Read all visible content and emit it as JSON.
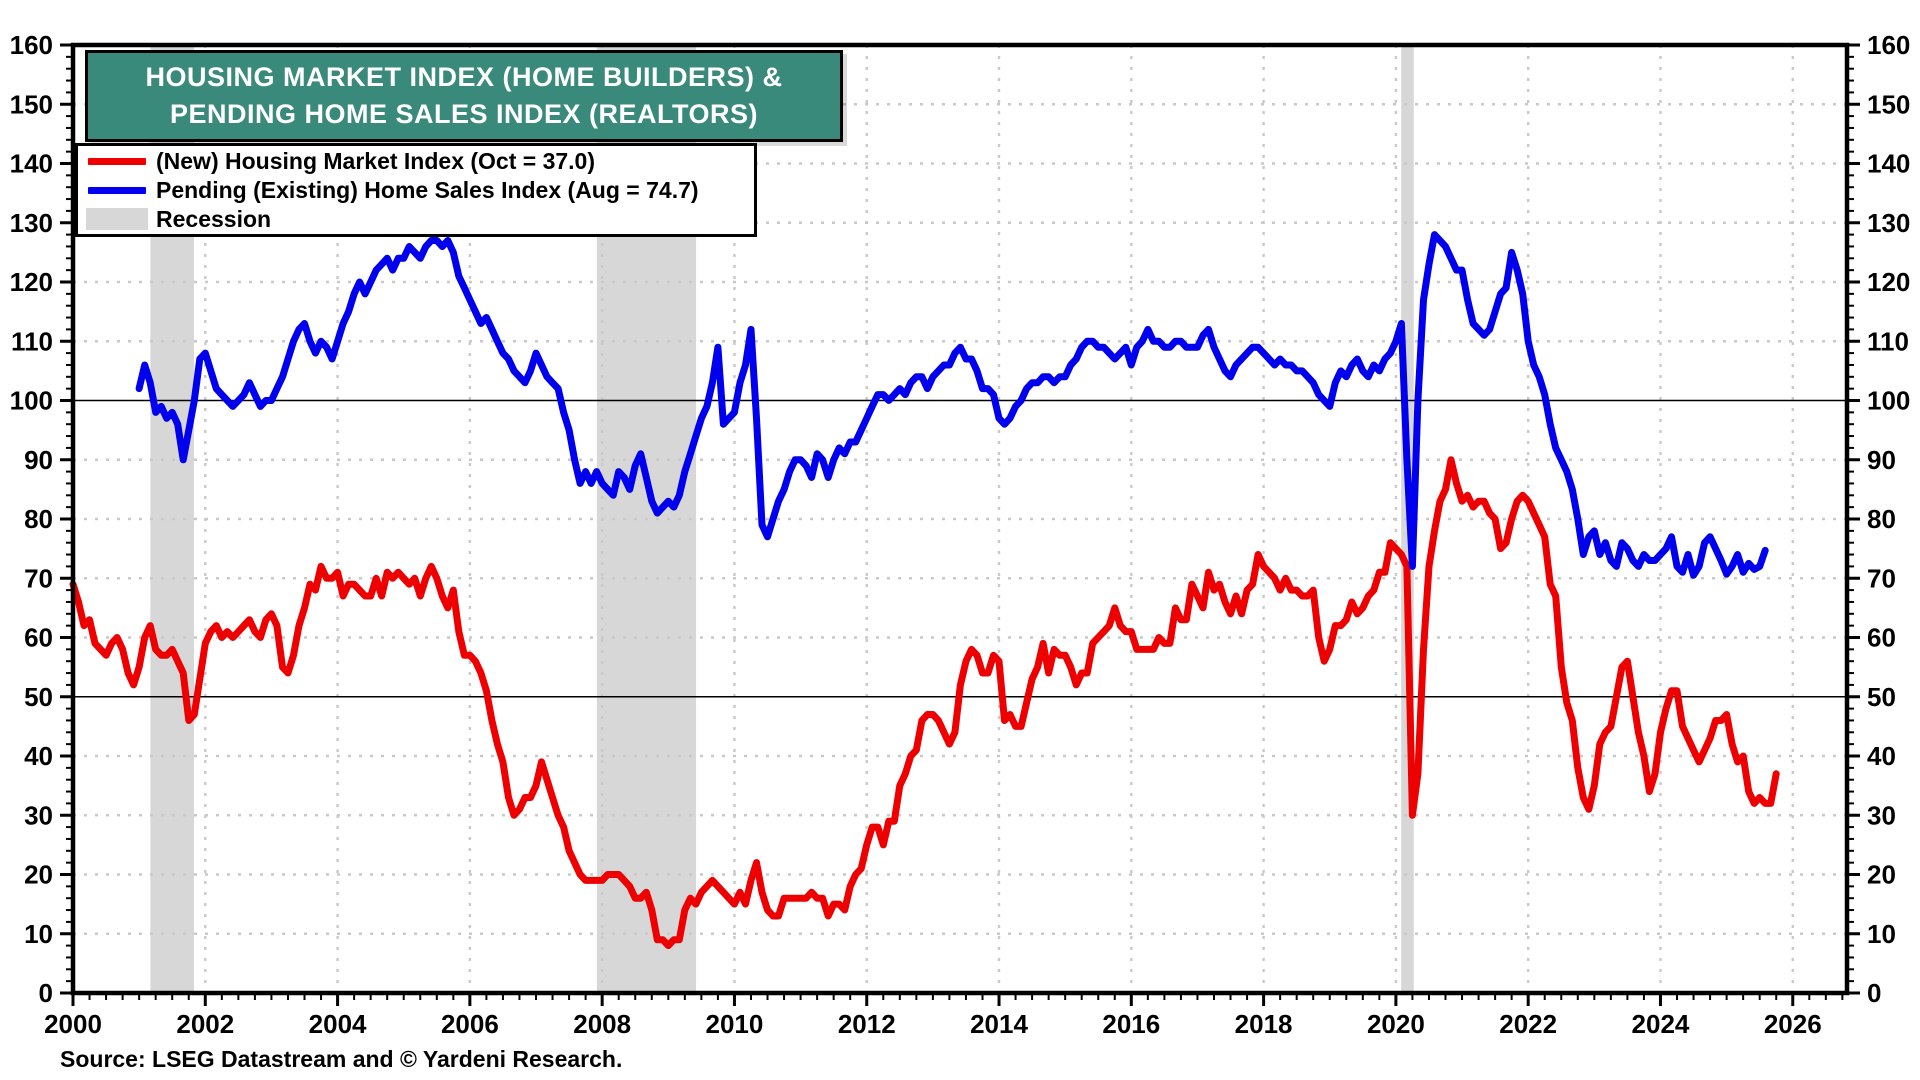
{
  "title": {
    "line1": "HOUSING MARKET INDEX (HOME BUILDERS) &",
    "line2": "PENDING HOME SALES INDEX (REALTORS)"
  },
  "legend": [
    {
      "label": "(New) Housing Market Index (Oct = 37.0)",
      "swatch": "line",
      "color": "#ee0000"
    },
    {
      "label": "Pending (Existing) Home Sales Index (Aug = 74.7)",
      "swatch": "line",
      "color": "#0000ee"
    },
    {
      "label": "Recession",
      "swatch": "rect",
      "color": "#d7d7d7"
    }
  ],
  "source": "Source: LSEG Datastream and © Yardeni Research.",
  "colors": {
    "hmi_red": "#ee0000",
    "phsi_blue": "#0000ee",
    "title_teal": "#3a8a7b",
    "recession_gray": "#d7d7d7",
    "grid_dotted_gray": "#c9c9c9",
    "reference_line_black": "#000000"
  },
  "chart_data": {
    "type": "line",
    "title": "Housing Market Index (Home Builders) & Pending Home Sales Index (Realtors)",
    "xlabel": "",
    "ylabel": "",
    "x_axis": {
      "min": 2000,
      "max": 2026.82,
      "label_years": [
        2000,
        2002,
        2004,
        2006,
        2008,
        2010,
        2012,
        2014,
        2016,
        2018,
        2020,
        2022,
        2024,
        2026
      ],
      "gridline_years": [
        2002,
        2004,
        2006,
        2008,
        2010,
        2012,
        2014,
        2016,
        2018,
        2020,
        2022,
        2024,
        2026
      ],
      "minor_tick_step_years": 0.25
    },
    "y_axis": {
      "min": 0,
      "max": 160,
      "major_step": 10,
      "minor_step": 2,
      "tick_labels": [
        0,
        10,
        20,
        30,
        40,
        50,
        60,
        70,
        80,
        90,
        100,
        110,
        120,
        130,
        140,
        150,
        160
      ],
      "solid_reference_lines": [
        50,
        100
      ],
      "labels_on_both_sides": true
    },
    "grid": "dotted horizontal every 10 and vertical every 2 years",
    "legend_position": "top-left box",
    "recessions": [
      {
        "start": 2001.17,
        "end": 2001.83
      },
      {
        "start": 2007.92,
        "end": 2009.42
      },
      {
        "start": 2020.08,
        "end": 2020.27
      }
    ],
    "series": [
      {
        "name": "(New) Housing Market Index",
        "latest_label": "Oct = 37.0",
        "color": "#ee0000",
        "start_year": 2000,
        "start_month": 1,
        "frequency": "monthly",
        "values": [
          69,
          66,
          62,
          63,
          59,
          58,
          57,
          59,
          60,
          58,
          54,
          52,
          55,
          60,
          62,
          58,
          57,
          57,
          58,
          56,
          54,
          46,
          47,
          53,
          59,
          61,
          62,
          60,
          61,
          60,
          61,
          62,
          63,
          61,
          60,
          63,
          64,
          62,
          55,
          54,
          57,
          62,
          65,
          69,
          68,
          72,
          70,
          70,
          71,
          67,
          69,
          69,
          68,
          67,
          67,
          70,
          67,
          71,
          70,
          71,
          70,
          69,
          70,
          67,
          70,
          72,
          70,
          67,
          65,
          68,
          61,
          57,
          57,
          56,
          54,
          51,
          46,
          42,
          39,
          33,
          30,
          31,
          33,
          33,
          35,
          39,
          36,
          33,
          30,
          28,
          24,
          22,
          20,
          19,
          19,
          19,
          19,
          20,
          20,
          20,
          19,
          18,
          16,
          16,
          17,
          14,
          9,
          9,
          8,
          9,
          9,
          14,
          16,
          15,
          17,
          18,
          19,
          18,
          17,
          16,
          15,
          17,
          15,
          19,
          22,
          17,
          14,
          13,
          13,
          16,
          16,
          16,
          16,
          16,
          17,
          16,
          16,
          13,
          15,
          15,
          14,
          18,
          20,
          21,
          25,
          28,
          28,
          25,
          29,
          29,
          35,
          37,
          40,
          41,
          46,
          47,
          47,
          46,
          44,
          42,
          44,
          52,
          56,
          58,
          57,
          54,
          54,
          57,
          56,
          46,
          47,
          45,
          45,
          49,
          53,
          55,
          59,
          54,
          58,
          57,
          57,
          55,
          52,
          54,
          54,
          59,
          60,
          61,
          62,
          65,
          62,
          61,
          61,
          58,
          58,
          58,
          58,
          60,
          59,
          59,
          65,
          63,
          63,
          69,
          67,
          65,
          71,
          68,
          69,
          66,
          64,
          67,
          64,
          68,
          69,
          74,
          72,
          71,
          70,
          68,
          70,
          68,
          68,
          67,
          67,
          68,
          60,
          56,
          58,
          62,
          62,
          63,
          66,
          64,
          65,
          67,
          68,
          71,
          71,
          76,
          75,
          74,
          72,
          30,
          37,
          58,
          72,
          78,
          83,
          85,
          90,
          86,
          83,
          84,
          82,
          83,
          83,
          81,
          80,
          75,
          76,
          80,
          83,
          84,
          83,
          81,
          79,
          77,
          69,
          67,
          55,
          49,
          46,
          38,
          33,
          31,
          35,
          42,
          44,
          45,
          50,
          55,
          56,
          50,
          44,
          40,
          34,
          37,
          44,
          48,
          51,
          51,
          45,
          43,
          41,
          39,
          41,
          43,
          46,
          46,
          47,
          42,
          39,
          40,
          34,
          32,
          33,
          32,
          32,
          37
        ]
      },
      {
        "name": "Pending (Existing) Home Sales Index",
        "latest_label": "Aug = 74.7",
        "color": "#0000ee",
        "start_year": 2001,
        "start_month": 1,
        "frequency": "monthly",
        "values": [
          102,
          106,
          103,
          98,
          99,
          97,
          98,
          96,
          90,
          95,
          100,
          107,
          108,
          105,
          102,
          101,
          100,
          99,
          100,
          101,
          103,
          101,
          99,
          100,
          100,
          102,
          104,
          107,
          110,
          112,
          113,
          110,
          108,
          110,
          109,
          107,
          110,
          113,
          115,
          118,
          120,
          118,
          120,
          122,
          123,
          124,
          122,
          124,
          124,
          126,
          125,
          124,
          126,
          127,
          127,
          126,
          127,
          125,
          121,
          119,
          117,
          115,
          113,
          114,
          112,
          110,
          108,
          107,
          105,
          104,
          103,
          105,
          108,
          106,
          104,
          103,
          102,
          98,
          95,
          90,
          86,
          88,
          86,
          88,
          86,
          85,
          84,
          88,
          87,
          85,
          89,
          91,
          87,
          83,
          81,
          82,
          83,
          82,
          84,
          88,
          91,
          94,
          97,
          99,
          103,
          109,
          96,
          97,
          98,
          103,
          106,
          112,
          97,
          79,
          77,
          80,
          83,
          85,
          88,
          90,
          90,
          89,
          87,
          91,
          90,
          87,
          90,
          92,
          91,
          93,
          93,
          95,
          97,
          99,
          101,
          101,
          100,
          101,
          102,
          101,
          103,
          104,
          104,
          102,
          104,
          105,
          106,
          106,
          108,
          109,
          107,
          107,
          105,
          102,
          102,
          101,
          97,
          96,
          97,
          99,
          100,
          102,
          103,
          103,
          104,
          104,
          103,
          104,
          104,
          106,
          107,
          109,
          110,
          110,
          109,
          109,
          108,
          107,
          108,
          109,
          106,
          109,
          110,
          112,
          110,
          110,
          109,
          109,
          110,
          110,
          109,
          109,
          109,
          111,
          112,
          109,
          107,
          105,
          104,
          106,
          107,
          108,
          109,
          109,
          108,
          107,
          106,
          107,
          106,
          106,
          105,
          105,
          104,
          103,
          101,
          100,
          99,
          103,
          105,
          104,
          106,
          107,
          105,
          104,
          106,
          105,
          107,
          108,
          110,
          113,
          90,
          72,
          100,
          117,
          123,
          128,
          127,
          126,
          124,
          122,
          122,
          117,
          113,
          112,
          111,
          112,
          115,
          118,
          119,
          125,
          122,
          118,
          110,
          106,
          104,
          101,
          96,
          92,
          90,
          88,
          85,
          80,
          74,
          77,
          78,
          74,
          76,
          73,
          72,
          76,
          75,
          73,
          72,
          74,
          73,
          73,
          74,
          75,
          77,
          72,
          71,
          74,
          70.5,
          72,
          76,
          77,
          75,
          73,
          70.7,
          72,
          74,
          71,
          72.5,
          71.5,
          72,
          74.7
        ]
      }
    ]
  }
}
